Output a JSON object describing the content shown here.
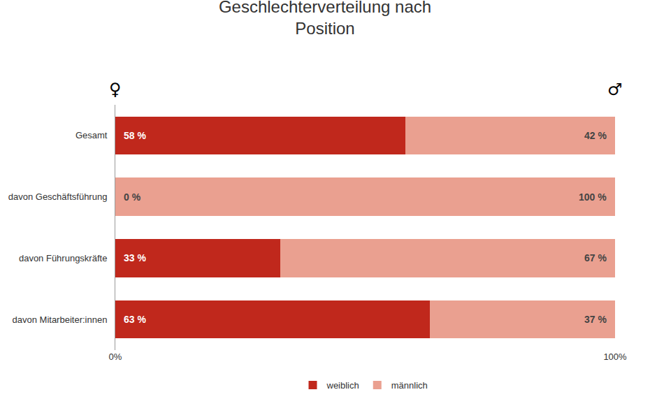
{
  "chart_data": {
    "type": "bar",
    "orientation": "horizontal",
    "stacked": true,
    "title": "Geschlechterverteilung nach\nPosition",
    "categories": [
      "Gesamt",
      "davon Geschäftsführung",
      "davon Führungskräfte",
      "davon Mitarbeiter:innen"
    ],
    "series": [
      {
        "name": "weiblich",
        "color": "#C0281C",
        "values": [
          58,
          0,
          33,
          63
        ],
        "value_labels": [
          "58 %",
          "0 %",
          "33 %",
          "63 %"
        ]
      },
      {
        "name": "männlich",
        "color": "#EAA090",
        "values": [
          42,
          100,
          67,
          37
        ],
        "value_labels": [
          "42 %",
          "100 %",
          "67 %",
          "37 %"
        ]
      }
    ],
    "xlim": [
      0,
      100
    ],
    "xticks": [
      {
        "value": 0,
        "label": "0%"
      },
      {
        "value": 100,
        "label": "100%"
      }
    ],
    "data_labels": true,
    "annotations": [
      "♀",
      "♂"
    ],
    "legend": "bottom",
    "grid": false
  }
}
